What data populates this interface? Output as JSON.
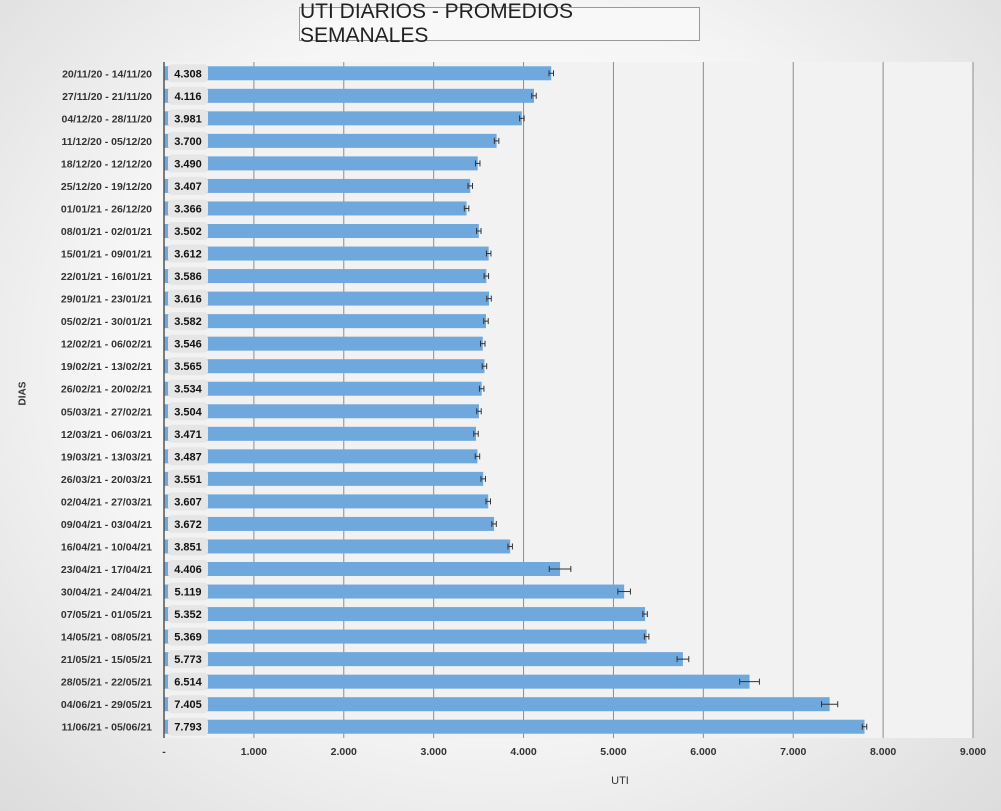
{
  "chart_data": {
    "type": "bar",
    "orientation": "horizontal",
    "title": "UTI DIARIOS - PROMEDIOS SEMANALES",
    "xlabel": "UTI",
    "ylabel": "DIAS",
    "xlim": [
      0,
      9000
    ],
    "x_ticks": [
      "-",
      "1.000",
      "2.000",
      "3.000",
      "4.000",
      "5.000",
      "6.000",
      "7.000",
      "8.000",
      "9.000"
    ],
    "grid": "vertical",
    "error_bars": true,
    "bar_color": "#6fa8dc",
    "categories": [
      "20/11/20 - 14/11/20",
      "27/11/20 - 21/11/20",
      "04/12/20 - 28/11/20",
      "11/12/20 - 05/12/20",
      "18/12/20 - 12/12/20",
      "25/12/20 - 19/12/20",
      "01/01/21 - 26/12/20",
      "08/01/21 - 02/01/21",
      "15/01/21 - 09/01/21",
      "22/01/21 - 16/01/21",
      "29/01/21 - 23/01/21",
      "05/02/21 - 30/01/21",
      "12/02/21 - 06/02/21",
      "19/02/21 - 13/02/21",
      "26/02/21 - 20/02/21",
      "05/03/21 - 27/02/21",
      "12/03/21 - 06/03/21",
      "19/03/21 - 13/03/21",
      "26/03/21 - 20/03/21",
      "02/04/21 - 27/03/21",
      "09/04/21 - 03/04/21",
      "16/04/21 - 10/04/21",
      "23/04/21 - 17/04/21",
      "30/04/21 - 24/04/21",
      "07/05/21 - 01/05/21",
      "14/05/21 - 08/05/21",
      "21/05/21 - 15/05/21",
      "28/05/21 - 22/05/21",
      "04/06/21 - 29/05/21",
      "11/06/21 - 05/06/21"
    ],
    "values": [
      4308,
      4116,
      3981,
      3700,
      3490,
      3407,
      3366,
      3502,
      3612,
      3586,
      3616,
      3582,
      3546,
      3565,
      3534,
      3504,
      3471,
      3487,
      3551,
      3607,
      3672,
      3851,
      4406,
      5119,
      5352,
      5369,
      5773,
      6514,
      7405,
      7793
    ],
    "value_labels": [
      "4.308",
      "4.116",
      "3.981",
      "3.700",
      "3.490",
      "3.407",
      "3.366",
      "3.502",
      "3.612",
      "3.586",
      "3.616",
      "3.582",
      "3.546",
      "3.565",
      "3.534",
      "3.504",
      "3.471",
      "3.487",
      "3.551",
      "3.607",
      "3.672",
      "3.851",
      "4.406",
      "5.119",
      "5.352",
      "5.369",
      "5.773",
      "6.514",
      "7.405",
      "7.793"
    ],
    "errors": [
      25,
      25,
      25,
      25,
      25,
      25,
      25,
      25,
      25,
      25,
      25,
      25,
      25,
      25,
      25,
      25,
      25,
      25,
      25,
      25,
      25,
      25,
      120,
      70,
      25,
      25,
      65,
      110,
      90,
      25
    ]
  }
}
